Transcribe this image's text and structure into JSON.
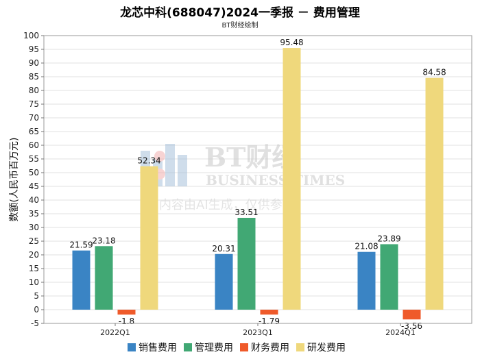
{
  "chart_data": {
    "type": "bar",
    "title": "龙芯中科(688047)2024一季报 － 费用管理",
    "subtitle": "BT财经绘制",
    "ylabel": "数额(人民币百万元)",
    "xlabel": "",
    "categories": [
      "2022Q1",
      "2023Q1",
      "2024Q1"
    ],
    "series": [
      {
        "name": "销售费用",
        "color": "#3a84c4",
        "values": [
          21.59,
          20.31,
          21.08
        ],
        "labels": [
          "21.59",
          "20.31",
          "21.08"
        ]
      },
      {
        "name": "管理费用",
        "color": "#41a874",
        "values": [
          23.18,
          33.51,
          23.89
        ],
        "labels": [
          "23.18",
          "33.51",
          "23.89"
        ]
      },
      {
        "name": "财务费用",
        "color": "#ef5a2a",
        "values": [
          -1.8,
          -1.79,
          -3.56
        ],
        "labels": [
          "-1.8",
          "-1.79",
          "-3.56"
        ]
      },
      {
        "name": "研发费用",
        "color": "#efd87c",
        "values": [
          52.34,
          95.48,
          84.58
        ],
        "labels": [
          "52.34",
          "95.48",
          "84.58"
        ]
      }
    ],
    "ylim": [
      -5,
      100
    ],
    "yticks": [
      "-5",
      "0",
      "5",
      "10",
      "15",
      "20",
      "25",
      "30",
      "35",
      "40",
      "45",
      "50",
      "55",
      "60",
      "65",
      "70",
      "75",
      "80",
      "85",
      "90",
      "95",
      "100"
    ],
    "grid": true,
    "legend_position": "bottom"
  },
  "watermark": {
    "brand": "BT财经",
    "name": "BUSINESS TIMES",
    "note": "内容由AI生成，仅供参考"
  }
}
